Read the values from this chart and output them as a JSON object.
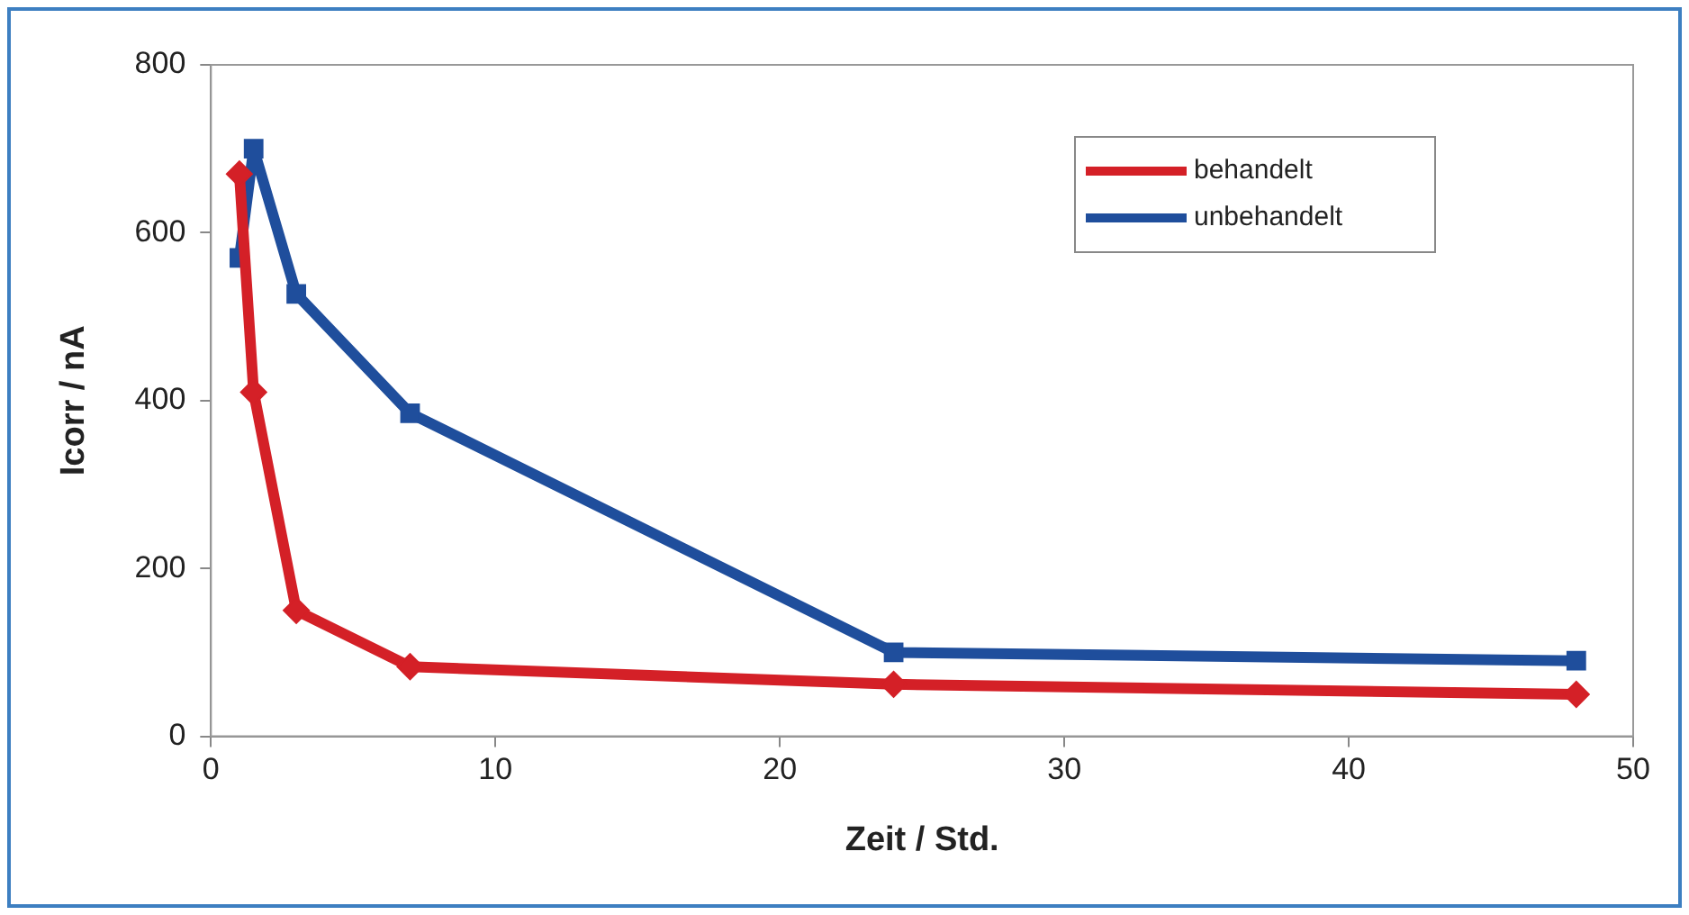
{
  "chart_data": {
    "type": "line",
    "xlabel": "Zeit / Std.",
    "ylabel": "Icorr / nA",
    "xlim": [
      0,
      50
    ],
    "xticks": [
      0,
      10,
      20,
      30,
      40,
      50
    ],
    "ylim": [
      0,
      800
    ],
    "yticks": [
      0,
      200,
      400,
      600,
      800
    ],
    "grid": false,
    "legend": "top right",
    "line_style": "solid",
    "series": [
      {
        "name": "behandelt",
        "color": "#d42027",
        "marker": "diamond",
        "x": [
          1,
          1.5,
          3,
          7,
          24,
          48
        ],
        "values": [
          670,
          410,
          150,
          83,
          62,
          50
        ]
      },
      {
        "name": "unbehandelt",
        "color": "#1f4e9c",
        "marker": "square",
        "x": [
          1,
          1.5,
          3,
          7,
          24,
          48
        ],
        "values": [
          570,
          700,
          527,
          385,
          100,
          90
        ]
      }
    ]
  }
}
